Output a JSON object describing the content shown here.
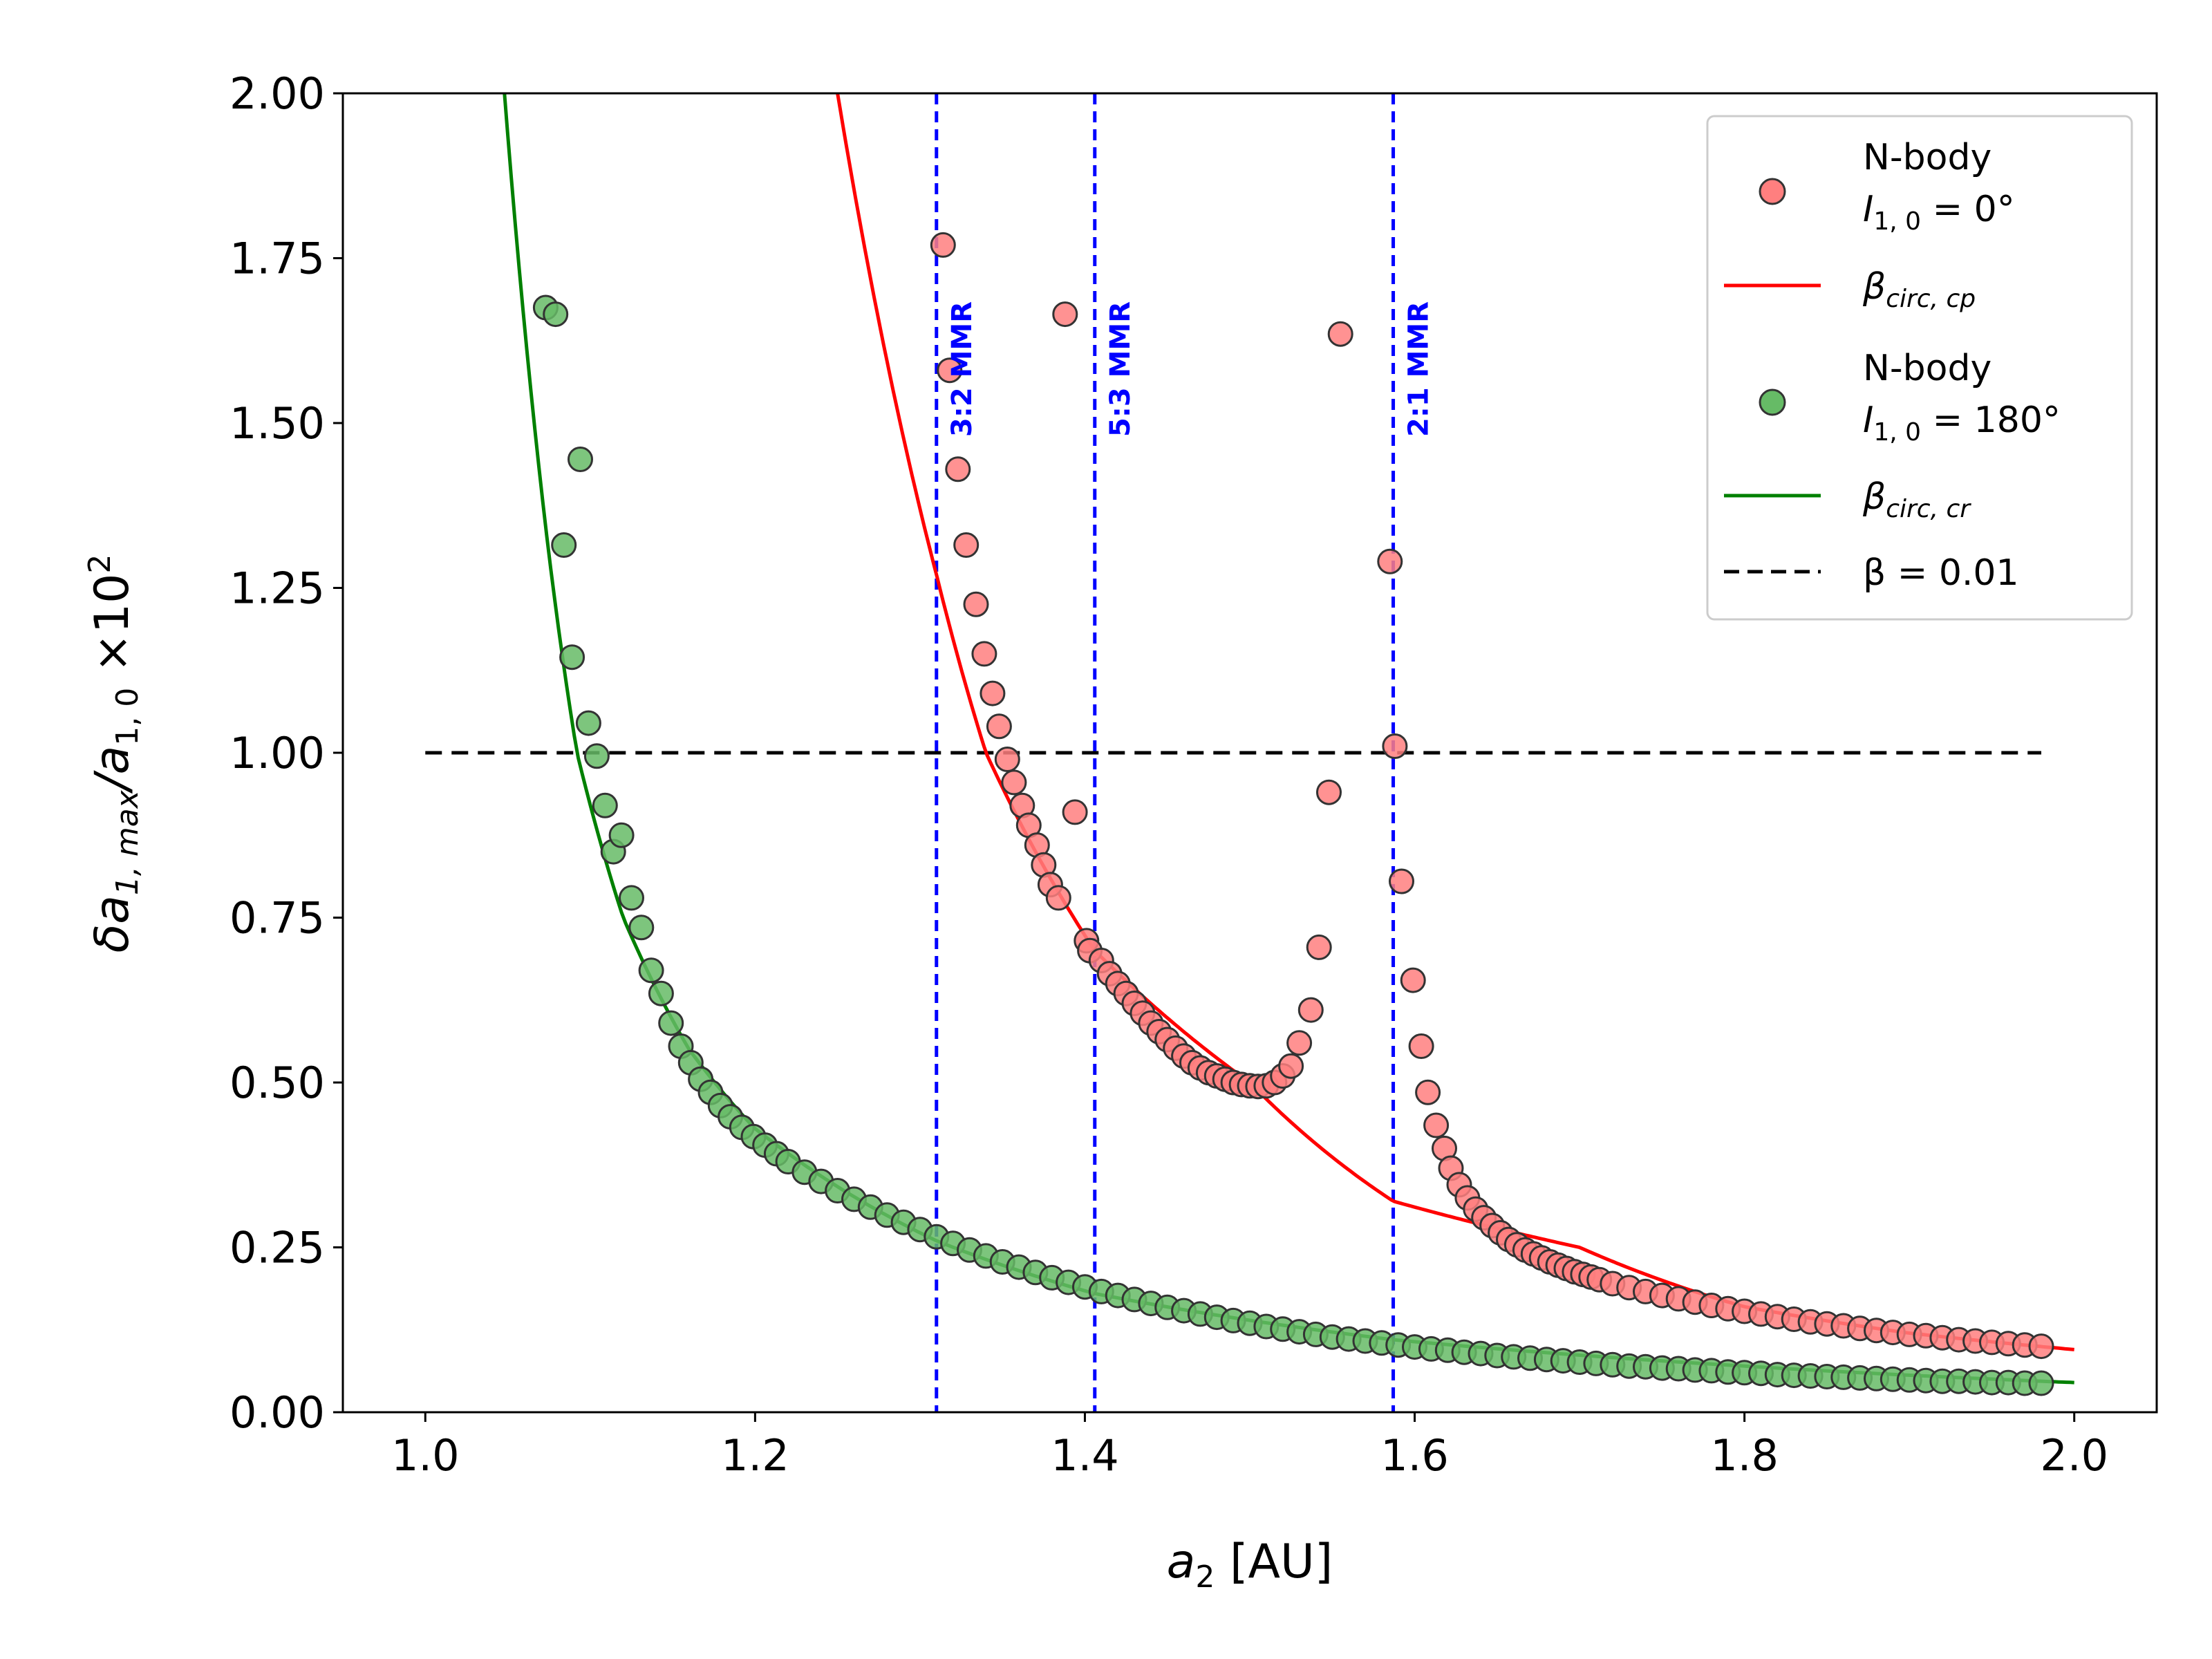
{
  "chart_data": {
    "type": "scatter",
    "title": "",
    "xlabel": {
      "base": "a",
      "sub": "2",
      "rest": " [AU]"
    },
    "ylabel": {
      "delta": "δa",
      "sub1": "1, max",
      "slash": "/a",
      "sub2": "1, 0",
      "times": " ×10",
      "sup": "2"
    },
    "xlim": [
      0.95,
      2.05
    ],
    "ylim": [
      0.0,
      2.0
    ],
    "x_ticks": [
      "1.0",
      "1.2",
      "1.4",
      "1.6",
      "1.8",
      "2.0"
    ],
    "x_tick_values": [
      1.0,
      1.2,
      1.4,
      1.6,
      1.8,
      2.0
    ],
    "y_ticks": [
      "0.00",
      "0.25",
      "0.50",
      "0.75",
      "1.00",
      "1.25",
      "1.50",
      "1.75",
      "2.00"
    ],
    "y_tick_values": [
      0.0,
      0.25,
      0.5,
      0.75,
      1.0,
      1.25,
      1.5,
      1.75,
      2.0
    ],
    "grid": false,
    "legend_position": "top-right",
    "colors": {
      "red_points": "#ff7f7f",
      "red_curve": "#ff0000",
      "green_points": "#66bb66",
      "green_curve": "#008000",
      "mmr_lines": "#0000ff",
      "threshold": "#000000",
      "marker_edge": "#333333"
    },
    "mmr_lines": [
      {
        "x": 1.31,
        "label": "3:2 MMR"
      },
      {
        "x": 1.406,
        "label": "5:3 MMR"
      },
      {
        "x": 1.587,
        "label": "2:1 MMR"
      }
    ],
    "threshold_line": {
      "y": 1.0,
      "x_start": 1.0,
      "x_end": 1.98
    },
    "red_curve": {
      "name": "β_circ,cp",
      "x_start": 1.24,
      "x_end": 2.0,
      "anchors_x": [
        1.25,
        1.31,
        1.34,
        1.406,
        1.5,
        1.587,
        1.7,
        1.8,
        1.9,
        2.0
      ],
      "anchors_y": [
        2.0,
        1.27,
        1.0,
        0.7,
        0.5,
        0.32,
        0.25,
        0.16,
        0.12,
        0.095
      ]
    },
    "green_curve": {
      "name": "β_circ,cr",
      "x_start": 1.045,
      "x_end": 2.0,
      "anchors_x": [
        1.048,
        1.075,
        1.092,
        1.12,
        1.16,
        1.2,
        1.31,
        1.406,
        1.587,
        1.8,
        2.0
      ],
      "anchors_y": [
        2.0,
        1.3,
        1.0,
        0.75,
        0.55,
        0.43,
        0.26,
        0.18,
        0.11,
        0.07,
        0.045
      ]
    },
    "series": [
      {
        "name": "N-body I1,0 = 0°",
        "x": [
          1.314,
          1.318,
          1.323,
          1.328,
          1.334,
          1.339,
          1.344,
          1.348,
          1.353,
          1.357,
          1.362,
          1.366,
          1.371,
          1.375,
          1.379,
          1.384,
          1.388,
          1.394,
          1.401,
          1.403,
          1.41,
          1.415,
          1.42,
          1.425,
          1.43,
          1.435,
          1.44,
          1.445,
          1.45,
          1.455,
          1.46,
          1.465,
          1.47,
          1.475,
          1.48,
          1.485,
          1.49,
          1.495,
          1.5,
          1.505,
          1.51,
          1.515,
          1.52,
          1.525,
          1.53,
          1.537,
          1.542,
          1.548,
          1.555,
          1.585,
          1.588,
          1.592,
          1.599,
          1.604,
          1.608,
          1.613,
          1.618,
          1.622,
          1.627,
          1.632,
          1.637,
          1.642,
          1.647,
          1.652,
          1.657,
          1.662,
          1.667,
          1.672,
          1.677,
          1.682,
          1.687,
          1.692,
          1.697,
          1.702,
          1.707,
          1.712,
          1.72,
          1.73,
          1.74,
          1.75,
          1.76,
          1.77,
          1.78,
          1.79,
          1.8,
          1.81,
          1.82,
          1.83,
          1.84,
          1.85,
          1.86,
          1.87,
          1.88,
          1.89,
          1.9,
          1.91,
          1.92,
          1.93,
          1.94,
          1.95,
          1.96,
          1.97,
          1.98
        ],
        "y": [
          1.77,
          1.58,
          1.43,
          1.315,
          1.225,
          1.15,
          1.09,
          1.04,
          0.99,
          0.955,
          0.92,
          0.89,
          0.86,
          0.83,
          0.8,
          0.78,
          1.665,
          0.91,
          0.715,
          0.7,
          0.685,
          0.665,
          0.65,
          0.635,
          0.62,
          0.605,
          0.59,
          0.577,
          0.565,
          0.552,
          0.54,
          0.53,
          0.522,
          0.515,
          0.51,
          0.505,
          0.5,
          0.497,
          0.495,
          0.494,
          0.495,
          0.5,
          0.51,
          0.525,
          0.56,
          0.61,
          0.705,
          0.94,
          1.635,
          1.29,
          1.01,
          0.805,
          0.655,
          0.555,
          0.485,
          0.435,
          0.4,
          0.37,
          0.345,
          0.325,
          0.308,
          0.295,
          0.283,
          0.272,
          0.262,
          0.254,
          0.246,
          0.24,
          0.234,
          0.228,
          0.223,
          0.218,
          0.213,
          0.209,
          0.205,
          0.201,
          0.195,
          0.189,
          0.183,
          0.177,
          0.172,
          0.167,
          0.162,
          0.157,
          0.153,
          0.149,
          0.145,
          0.141,
          0.137,
          0.134,
          0.131,
          0.127,
          0.124,
          0.121,
          0.118,
          0.116,
          0.113,
          0.11,
          0.108,
          0.106,
          0.104,
          0.102,
          0.1
        ]
      },
      {
        "name": "N-body I1,0 = 180°",
        "x": [
          1.073,
          1.079,
          1.084,
          1.089,
          1.094,
          1.099,
          1.104,
          1.109,
          1.114,
          1.119,
          1.125,
          1.131,
          1.137,
          1.143,
          1.149,
          1.155,
          1.161,
          1.167,
          1.173,
          1.179,
          1.185,
          1.192,
          1.199,
          1.206,
          1.213,
          1.22,
          1.23,
          1.24,
          1.25,
          1.26,
          1.27,
          1.28,
          1.29,
          1.3,
          1.31,
          1.32,
          1.33,
          1.34,
          1.35,
          1.36,
          1.37,
          1.38,
          1.39,
          1.4,
          1.41,
          1.42,
          1.43,
          1.44,
          1.45,
          1.46,
          1.47,
          1.48,
          1.49,
          1.5,
          1.51,
          1.52,
          1.53,
          1.54,
          1.55,
          1.56,
          1.57,
          1.58,
          1.59,
          1.6,
          1.61,
          1.62,
          1.63,
          1.64,
          1.65,
          1.66,
          1.67,
          1.68,
          1.69,
          1.7,
          1.71,
          1.72,
          1.73,
          1.74,
          1.75,
          1.76,
          1.77,
          1.78,
          1.79,
          1.8,
          1.81,
          1.82,
          1.83,
          1.84,
          1.85,
          1.86,
          1.87,
          1.88,
          1.89,
          1.9,
          1.91,
          1.92,
          1.93,
          1.94,
          1.95,
          1.96,
          1.97,
          1.98
        ],
        "y": [
          1.675,
          1.665,
          1.315,
          1.145,
          1.445,
          1.045,
          0.995,
          0.92,
          0.85,
          0.875,
          0.78,
          0.735,
          0.67,
          0.635,
          0.59,
          0.555,
          0.53,
          0.505,
          0.485,
          0.465,
          0.448,
          0.432,
          0.418,
          0.405,
          0.392,
          0.38,
          0.364,
          0.35,
          0.336,
          0.323,
          0.311,
          0.299,
          0.288,
          0.277,
          0.266,
          0.256,
          0.246,
          0.237,
          0.228,
          0.22,
          0.212,
          0.204,
          0.197,
          0.19,
          0.183,
          0.177,
          0.171,
          0.165,
          0.159,
          0.154,
          0.149,
          0.144,
          0.139,
          0.135,
          0.13,
          0.126,
          0.122,
          0.118,
          0.114,
          0.111,
          0.108,
          0.105,
          0.102,
          0.099,
          0.096,
          0.094,
          0.091,
          0.089,
          0.086,
          0.084,
          0.082,
          0.08,
          0.078,
          0.076,
          0.074,
          0.072,
          0.07,
          0.069,
          0.067,
          0.066,
          0.064,
          0.063,
          0.061,
          0.06,
          0.059,
          0.057,
          0.056,
          0.055,
          0.054,
          0.053,
          0.052,
          0.051,
          0.05,
          0.049,
          0.048,
          0.047,
          0.047,
          0.046,
          0.045,
          0.045,
          0.044,
          0.044
        ]
      }
    ],
    "legend": [
      {
        "kind": "marker-red",
        "line1": "N-body",
        "line2_base": "I",
        "line2_sub": "1, 0",
        "line2_rest": " = 0°"
      },
      {
        "kind": "line-red",
        "base": "β",
        "sub": "circ, cp"
      },
      {
        "kind": "marker-green",
        "line1": "N-body",
        "line2_base": "I",
        "line2_sub": "1, 0",
        "line2_rest": " = 180°"
      },
      {
        "kind": "line-green",
        "base": "β",
        "sub": "circ, cr"
      },
      {
        "kind": "dashed-black",
        "text": "β = 0.01"
      }
    ]
  }
}
